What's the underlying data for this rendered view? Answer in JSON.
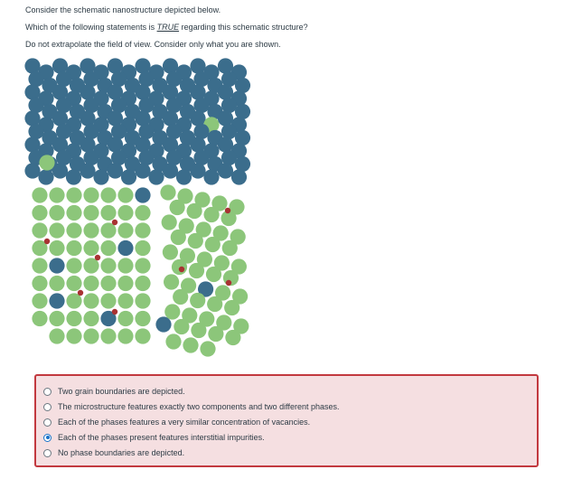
{
  "question": {
    "intro": "Consider the schematic nanostructure depicted below.",
    "prompt_pre": "Which of the following statements is ",
    "prompt_emph": "TRUE",
    "prompt_post": " regarding this schematic structure?",
    "note": "Do not extrapolate the field of view. Consider only what you are shown."
  },
  "figure": {
    "colors": {
      "blue": "#3b6d8c",
      "green": "#8cc67a",
      "impurity": "#a83232"
    }
  },
  "options": [
    {
      "label": "Two grain boundaries are depicted.",
      "selected": false
    },
    {
      "label": "The microstructure features exactly two components and two different phases.",
      "selected": false
    },
    {
      "label": "Each of the phases features a very similar concentration of vacancies.",
      "selected": false
    },
    {
      "label": "Each of the phases present features interstitial impurities.",
      "selected": true
    },
    {
      "label": "No phase boundaries are depicted.",
      "selected": false
    }
  ]
}
